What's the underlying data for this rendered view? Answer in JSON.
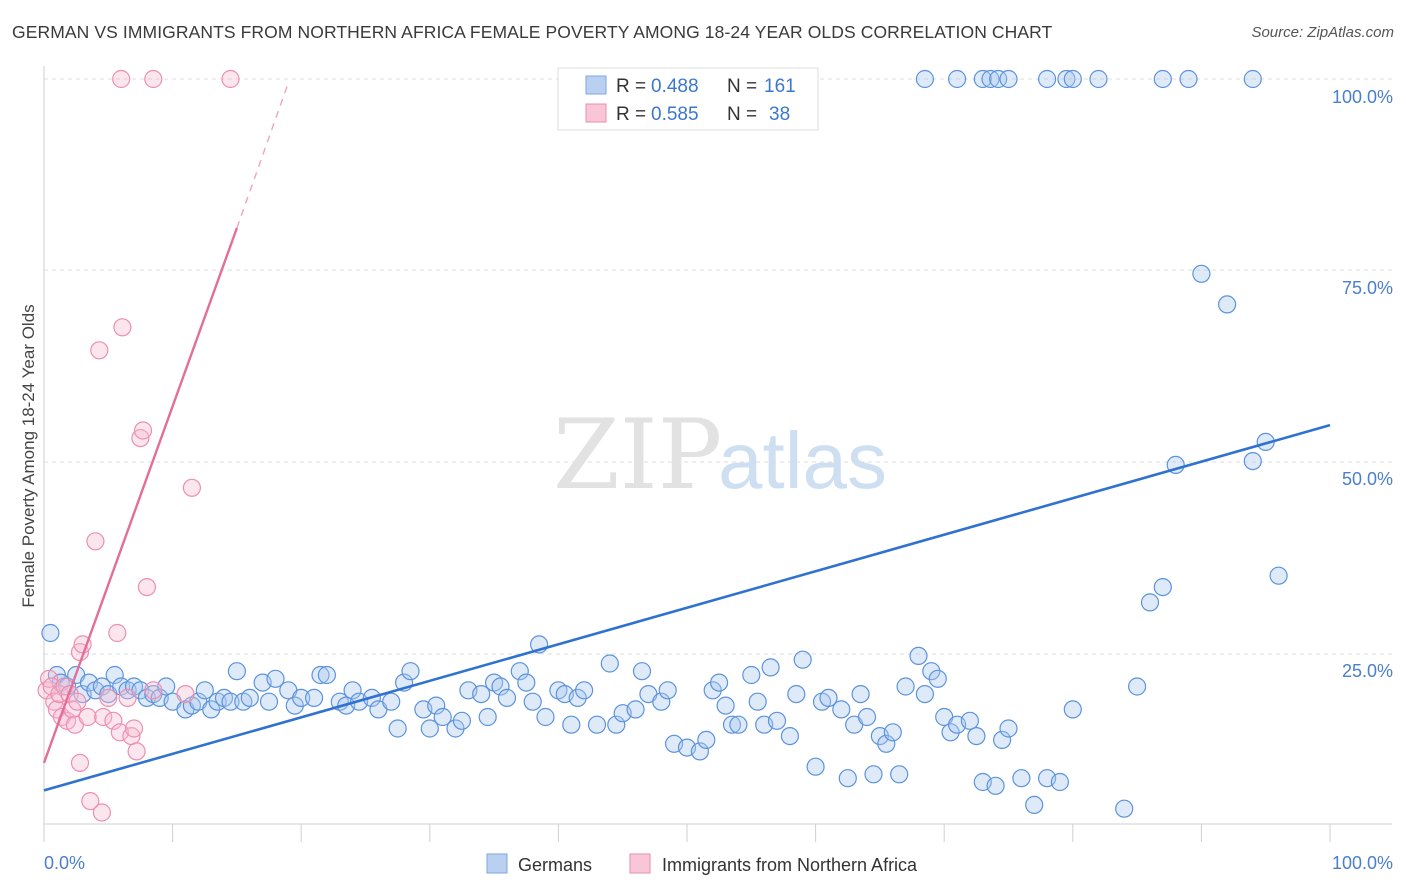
{
  "title": "GERMAN VS IMMIGRANTS FROM NORTHERN AFRICA FEMALE POVERTY AMONG 18-24 YEAR OLDS CORRELATION CHART",
  "source": "Source: ZipAtlas.com",
  "watermark": {
    "zip": "ZIP",
    "atlas": "atlas"
  },
  "legend_top": [
    {
      "r_label": "R = ",
      "r_value": "0.488",
      "n_label": "N = ",
      "n_value": "161"
    },
    {
      "r_label": "R = ",
      "r_value": "0.585",
      "n_label": "N = ",
      "n_value": "38"
    }
  ],
  "chart_data": {
    "type": "scatter",
    "title": "GERMAN VS IMMIGRANTS FROM NORTHERN AFRICA FEMALE POVERTY AMONG 18-24 YEAR OLDS CORRELATION CHART",
    "xlabel": "",
    "ylabel": "Female Poverty Among 18-24 Year Olds",
    "xlim": [
      0,
      100
    ],
    "ylim": [
      0,
      100
    ],
    "x_tick_labels": [
      "0.0%",
      "100.0%"
    ],
    "y_tick_labels": [
      {
        "value": 25,
        "label": "25.0%"
      },
      {
        "value": 50,
        "label": "50.0%"
      },
      {
        "value": 75,
        "label": "75.0%"
      },
      {
        "value": 100,
        "label": "100.0%"
      }
    ],
    "grid": true,
    "legend_placement": "top-center",
    "colors": {
      "germans": "#4a86d8",
      "immigrants": "#e8739a"
    },
    "series": [
      {
        "name": "Germans",
        "R": 0.488,
        "N": 161,
        "trend": {
          "x": [
            0,
            100
          ],
          "y": [
            4.4,
            52.2
          ]
        },
        "points": [
          [
            0.5,
            25
          ],
          [
            1,
            19.5
          ],
          [
            1.3,
            18.5
          ],
          [
            1.8,
            18
          ],
          [
            2.5,
            19.5
          ],
          [
            3,
            17
          ],
          [
            3.5,
            18.5
          ],
          [
            4,
            17.5
          ],
          [
            4.5,
            18
          ],
          [
            5,
            17
          ],
          [
            5.5,
            19.5
          ],
          [
            6,
            18
          ],
          [
            6.5,
            17.5
          ],
          [
            7,
            18
          ],
          [
            7.5,
            17.5
          ],
          [
            8,
            16.5
          ],
          [
            8.5,
            17
          ],
          [
            9,
            16.5
          ],
          [
            9.5,
            18
          ],
          [
            10,
            16
          ],
          [
            11,
            15
          ],
          [
            11.5,
            15.5
          ],
          [
            12,
            16
          ],
          [
            12.5,
            17.5
          ],
          [
            13,
            15
          ],
          [
            13.5,
            16
          ],
          [
            14,
            16.5
          ],
          [
            14.5,
            16
          ],
          [
            15,
            20
          ],
          [
            15.5,
            16
          ],
          [
            16,
            16.5
          ],
          [
            17,
            18.5
          ],
          [
            17.5,
            16
          ],
          [
            18,
            19
          ],
          [
            19,
            17.5
          ],
          [
            19.5,
            15.5
          ],
          [
            20,
            16.5
          ],
          [
            21,
            16.5
          ],
          [
            21.5,
            19.5
          ],
          [
            22,
            19.5
          ],
          [
            23,
            16
          ],
          [
            23.5,
            15.5
          ],
          [
            24,
            17.5
          ],
          [
            24.5,
            16
          ],
          [
            25.5,
            16.5
          ],
          [
            26,
            15
          ],
          [
            27,
            16
          ],
          [
            27.5,
            12.5
          ],
          [
            28,
            18.5
          ],
          [
            28.5,
            20
          ],
          [
            29.5,
            15
          ],
          [
            30,
            12.5
          ],
          [
            30.5,
            15.5
          ],
          [
            31,
            14
          ],
          [
            32,
            12.5
          ],
          [
            32.5,
            13.5
          ],
          [
            33,
            17.5
          ],
          [
            34,
            17
          ],
          [
            34.5,
            14
          ],
          [
            35,
            18.5
          ],
          [
            35.5,
            18
          ],
          [
            36,
            16.5
          ],
          [
            37,
            20
          ],
          [
            37.5,
            18.5
          ],
          [
            38,
            16
          ],
          [
            38.5,
            23.5
          ],
          [
            39,
            14
          ],
          [
            40,
            17.5
          ],
          [
            40.5,
            17
          ],
          [
            41,
            13
          ],
          [
            41.5,
            16.5
          ],
          [
            42,
            17.5
          ],
          [
            43,
            13
          ],
          [
            44,
            21
          ],
          [
            44.5,
            13
          ],
          [
            45,
            14.5
          ],
          [
            46,
            15
          ],
          [
            46.5,
            20
          ],
          [
            47,
            17
          ],
          [
            48,
            16
          ],
          [
            48.5,
            17.5
          ],
          [
            49,
            10.5
          ],
          [
            50,
            10
          ],
          [
            51,
            9.5
          ],
          [
            51.5,
            11
          ],
          [
            52,
            17.5
          ],
          [
            52.5,
            18.5
          ],
          [
            53,
            15.5
          ],
          [
            53.5,
            13
          ],
          [
            54,
            13
          ],
          [
            55,
            19.5
          ],
          [
            55.5,
            16
          ],
          [
            56,
            13
          ],
          [
            56.5,
            20.5
          ],
          [
            57,
            13.5
          ],
          [
            58,
            11.5
          ],
          [
            58.5,
            17
          ],
          [
            59,
            21.5
          ],
          [
            60,
            7.5
          ],
          [
            60.5,
            16
          ],
          [
            61,
            16.5
          ],
          [
            62,
            15
          ],
          [
            62.5,
            6
          ],
          [
            63,
            13
          ],
          [
            63.5,
            17
          ],
          [
            64,
            14
          ],
          [
            64.5,
            6.5
          ],
          [
            65,
            11.5
          ],
          [
            65.5,
            10.5
          ],
          [
            66,
            12
          ],
          [
            66.5,
            6.5
          ],
          [
            67,
            18
          ],
          [
            68,
            22
          ],
          [
            68.5,
            17
          ],
          [
            69,
            20
          ],
          [
            69.5,
            19
          ],
          [
            70,
            14
          ],
          [
            70.5,
            12
          ],
          [
            71,
            13
          ],
          [
            72,
            13.5
          ],
          [
            72.5,
            11.5
          ],
          [
            73,
            5.5
          ],
          [
            74,
            5
          ],
          [
            74.5,
            11
          ],
          [
            75,
            12.5
          ],
          [
            76,
            6
          ],
          [
            77,
            2.5
          ],
          [
            78,
            6
          ],
          [
            79,
            5.5
          ],
          [
            80,
            15
          ],
          [
            84,
            2
          ],
          [
            85,
            18
          ],
          [
            86,
            29
          ],
          [
            87,
            31
          ],
          [
            88,
            47
          ],
          [
            90,
            72
          ],
          [
            92,
            68
          ],
          [
            94,
            47.5
          ],
          [
            95,
            50
          ],
          [
            96,
            32.5
          ],
          [
            68.5,
            97.5
          ],
          [
            71,
            97.5
          ],
          [
            73,
            97.5
          ],
          [
            73.6,
            97.5
          ],
          [
            74.2,
            97.5
          ],
          [
            75,
            97.5
          ],
          [
            78,
            97.5
          ],
          [
            79.5,
            97.5
          ],
          [
            80,
            97.5
          ],
          [
            82,
            97.5
          ],
          [
            87,
            97.5
          ],
          [
            89,
            97.5
          ],
          [
            94,
            97.5
          ]
        ]
      },
      {
        "name": "Immigrants from Northern Africa",
        "R": 0.585,
        "N": 38,
        "trend": {
          "x": [
            0,
            15
          ],
          "y": [
            8,
            78
          ]
        },
        "trend_extension": {
          "x": [
            15,
            19
          ],
          "y": [
            78,
            97
          ]
        },
        "points": [
          [
            0.2,
            17.5
          ],
          [
            0.4,
            19
          ],
          [
            0.6,
            18
          ],
          [
            0.8,
            16
          ],
          [
            1,
            15
          ],
          [
            1.2,
            17
          ],
          [
            1.4,
            14
          ],
          [
            1.6,
            18
          ],
          [
            1.8,
            13.5
          ],
          [
            2,
            17
          ],
          [
            2.2,
            15
          ],
          [
            2.4,
            13
          ],
          [
            2.6,
            16
          ],
          [
            2.8,
            22.5
          ],
          [
            3,
            23.5
          ],
          [
            3.4,
            14
          ],
          [
            4,
            37
          ],
          [
            4.3,
            62
          ],
          [
            4.6,
            14
          ],
          [
            5,
            16.5
          ],
          [
            5.4,
            13.5
          ],
          [
            5.7,
            25
          ],
          [
            5.9,
            12
          ],
          [
            6.1,
            65
          ],
          [
            6.5,
            16.5
          ],
          [
            6.8,
            11.5
          ],
          [
            7,
            12.5
          ],
          [
            7.2,
            9.5
          ],
          [
            7.5,
            50.5
          ],
          [
            7.7,
            51.5
          ],
          [
            8,
            31
          ],
          [
            8.5,
            17.5
          ],
          [
            11,
            17
          ],
          [
            11.5,
            44
          ],
          [
            2.8,
            8
          ],
          [
            3.6,
            3
          ],
          [
            4.5,
            1.5
          ],
          [
            6,
            97.5
          ],
          [
            8.5,
            97.5
          ],
          [
            14.5,
            97.5
          ]
        ]
      }
    ]
  },
  "legend_bottom": [
    {
      "label": "Germans"
    },
    {
      "label": "Immigrants from Northern Africa"
    }
  ]
}
